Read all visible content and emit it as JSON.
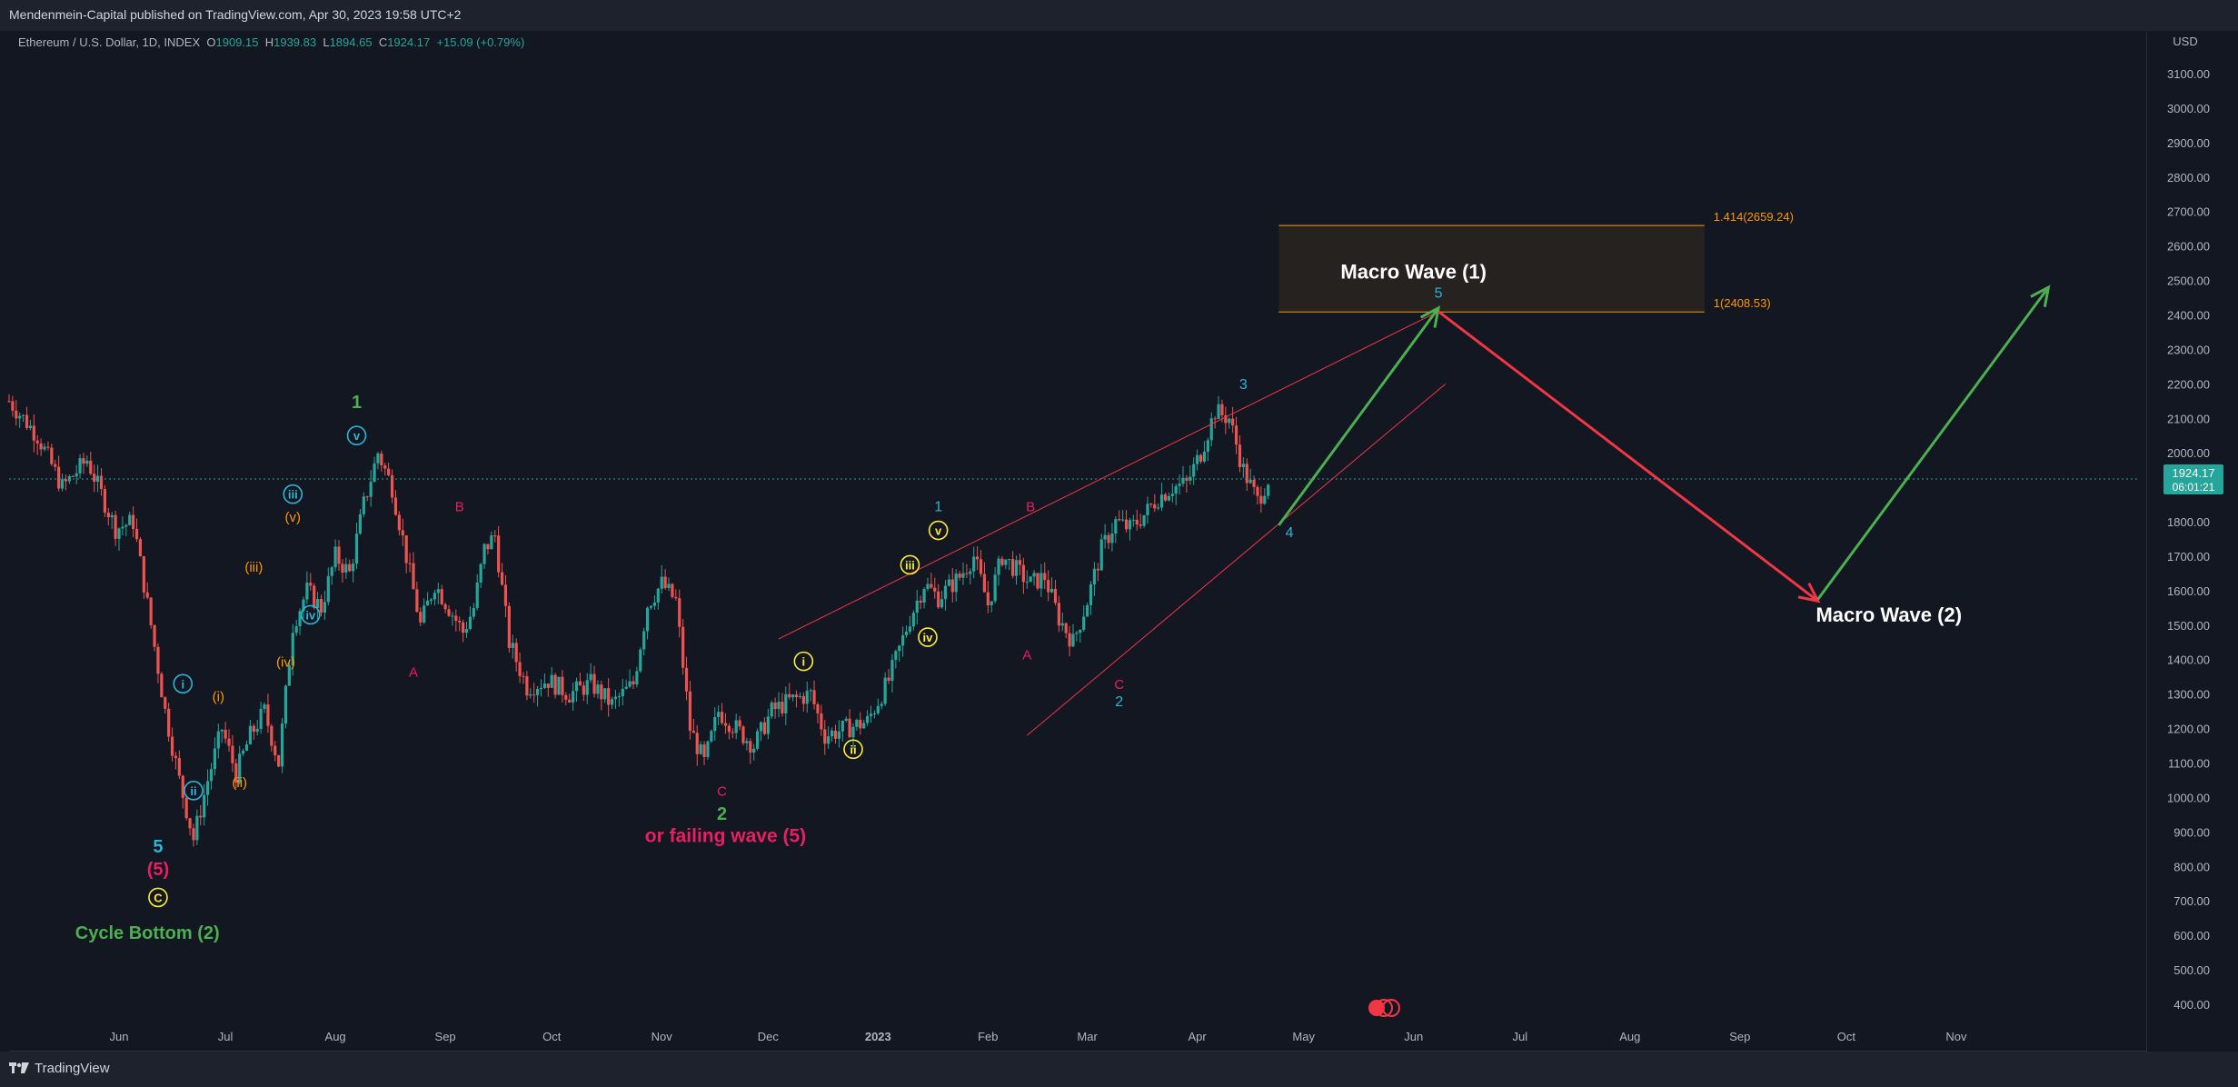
{
  "header": {
    "published_line": "Mendenmein-Capital published on TradingView.com, Apr 30, 2023 19:58 UTC+2"
  },
  "legend": {
    "symbol": "Ethereum / U.S. Dollar, 1D, INDEX",
    "o_label": "O",
    "o": "1909.15",
    "h_label": "H",
    "h": "1939.83",
    "l_label": "L",
    "l": "1894.65",
    "c_label": "C",
    "c": "1924.17",
    "change": "+15.09 (+0.79%)"
  },
  "price_badge": {
    "price": "1924.17",
    "countdown": "06:01:21"
  },
  "footer": {
    "brand": "TradingView"
  },
  "colors": {
    "background": "#131722",
    "up": "#26a69a",
    "down": "#ef5350",
    "green_arrow": "#4caf50",
    "red_arrow": "#f23645",
    "orange": "#ff9800",
    "cyan": "#2bb5d6",
    "yellow": "#ffeb3b",
    "pink": "#e91e63",
    "fib_box": "#2a2520"
  },
  "chart_data": {
    "type": "candlestick",
    "currency": "USD",
    "ylim": [
      350,
      3240
    ],
    "y_ticks": [
      400,
      500,
      600,
      700,
      800,
      900,
      1000,
      1100,
      1200,
      1300,
      1400,
      1500,
      1600,
      1700,
      1800,
      1900,
      2000,
      2100,
      2200,
      2300,
      2400,
      2500,
      2600,
      2700,
      2800,
      2900,
      3000,
      3100
    ],
    "x_labels": [
      "Jun",
      "Jul",
      "Aug",
      "Sep",
      "Oct",
      "Nov",
      "Dec",
      "2023",
      "Feb",
      "Mar",
      "Apr",
      "May",
      "Jun",
      "Jul",
      "Aug",
      "Sep",
      "Oct",
      "Nov"
    ],
    "x_label_days": [
      31,
      61,
      92,
      123,
      153,
      184,
      214,
      245,
      276,
      304,
      335,
      365,
      396,
      426,
      457,
      488,
      518,
      549
    ],
    "x_range_days": [
      0,
      600
    ],
    "series_ohlc_anchor_points": [
      {
        "day": 0,
        "close": 2150
      },
      {
        "day": 8,
        "close": 2050
      },
      {
        "day": 15,
        "close": 1900
      },
      {
        "day": 22,
        "close": 1980
      },
      {
        "day": 30,
        "close": 1780
      },
      {
        "day": 35,
        "close": 1800
      },
      {
        "day": 40,
        "close": 1500
      },
      {
        "day": 44,
        "close": 1250
      },
      {
        "day": 48,
        "close": 1050
      },
      {
        "day": 52,
        "close": 880
      },
      {
        "day": 56,
        "close": 1050
      },
      {
        "day": 60,
        "close": 1200
      },
      {
        "day": 64,
        "close": 1070
      },
      {
        "day": 68,
        "close": 1180
      },
      {
        "day": 72,
        "close": 1250
      },
      {
        "day": 76,
        "close": 1100
      },
      {
        "day": 80,
        "close": 1500
      },
      {
        "day": 84,
        "close": 1600
      },
      {
        "day": 88,
        "close": 1550
      },
      {
        "day": 92,
        "close": 1700
      },
      {
        "day": 96,
        "close": 1650
      },
      {
        "day": 100,
        "close": 1850
      },
      {
        "day": 104,
        "close": 2000
      },
      {
        "day": 108,
        "close": 1900
      },
      {
        "day": 112,
        "close": 1700
      },
      {
        "day": 116,
        "close": 1500
      },
      {
        "day": 120,
        "close": 1620
      },
      {
        "day": 124,
        "close": 1550
      },
      {
        "day": 128,
        "close": 1480
      },
      {
        "day": 131,
        "close": 1550
      },
      {
        "day": 134,
        "close": 1720
      },
      {
        "day": 137,
        "close": 1760
      },
      {
        "day": 141,
        "close": 1450
      },
      {
        "day": 146,
        "close": 1320
      },
      {
        "day": 152,
        "close": 1340
      },
      {
        "day": 158,
        "close": 1300
      },
      {
        "day": 164,
        "close": 1330
      },
      {
        "day": 170,
        "close": 1270
      },
      {
        "day": 176,
        "close": 1330
      },
      {
        "day": 180,
        "close": 1560
      },
      {
        "day": 184,
        "close": 1620
      },
      {
        "day": 188,
        "close": 1570
      },
      {
        "day": 192,
        "close": 1200
      },
      {
        "day": 196,
        "close": 1100
      },
      {
        "day": 200,
        "close": 1250
      },
      {
        "day": 205,
        "close": 1200
      },
      {
        "day": 210,
        "close": 1150
      },
      {
        "day": 215,
        "close": 1250
      },
      {
        "day": 220,
        "close": 1280
      },
      {
        "day": 226,
        "close": 1300
      },
      {
        "day": 230,
        "close": 1180
      },
      {
        "day": 236,
        "close": 1200
      },
      {
        "day": 242,
        "close": 1220
      },
      {
        "day": 248,
        "close": 1340
      },
      {
        "day": 254,
        "close": 1520
      },
      {
        "day": 258,
        "close": 1620
      },
      {
        "day": 262,
        "close": 1580
      },
      {
        "day": 268,
        "close": 1640
      },
      {
        "day": 272,
        "close": 1700
      },
      {
        "day": 276,
        "close": 1560
      },
      {
        "day": 280,
        "close": 1700
      },
      {
        "day": 284,
        "close": 1660
      },
      {
        "day": 288,
        "close": 1620
      },
      {
        "day": 292,
        "close": 1640
      },
      {
        "day": 296,
        "close": 1520
      },
      {
        "day": 300,
        "close": 1450
      },
      {
        "day": 304,
        "close": 1570
      },
      {
        "day": 308,
        "close": 1720
      },
      {
        "day": 312,
        "close": 1800
      },
      {
        "day": 316,
        "close": 1780
      },
      {
        "day": 320,
        "close": 1820
      },
      {
        "day": 324,
        "close": 1870
      },
      {
        "day": 328,
        "close": 1900
      },
      {
        "day": 332,
        "close": 1910
      },
      {
        "day": 336,
        "close": 2000
      },
      {
        "day": 340,
        "close": 2120
      },
      {
        "day": 344,
        "close": 2100
      },
      {
        "day": 348,
        "close": 1950
      },
      {
        "day": 352,
        "close": 1860
      },
      {
        "day": 355,
        "close": 1924
      }
    ],
    "current_price": 1924.17,
    "fib_levels": [
      {
        "label": "1.414(2659.24)",
        "price": 2659.24
      },
      {
        "label": "1(2408.53)",
        "price": 2408.53
      }
    ],
    "annotations": [
      {
        "text": "Macro Wave (1)",
        "day": 396,
        "price": 2505,
        "color": "#ffffff",
        "size": 22,
        "weight": "bold"
      },
      {
        "text": "Macro Wave (2)",
        "day": 530,
        "price": 1510,
        "color": "#ffffff",
        "size": 22,
        "weight": "bold"
      },
      {
        "text": "Cycle Bottom (2)",
        "day": 39,
        "price": 590,
        "color": "#4caf50",
        "size": 20,
        "weight": "bold"
      },
      {
        "text": "or failing wave (5)",
        "day": 202,
        "price": 870,
        "color": "#e91e63",
        "size": 21,
        "weight": "bold"
      },
      {
        "text": "5",
        "day": 42,
        "price": 840,
        "color": "#2bb5d6",
        "size": 20,
        "weight": "bold"
      },
      {
        "text": "(5)",
        "day": 42,
        "price": 775,
        "color": "#e91e63",
        "size": 20,
        "weight": "bold"
      },
      {
        "text": "1",
        "day": 98,
        "price": 2130,
        "color": "#4caf50",
        "size": 20,
        "weight": "bold"
      },
      {
        "text": "2",
        "day": 201,
        "price": 935,
        "color": "#4caf50",
        "size": 20,
        "weight": "bold"
      },
      {
        "text": "C",
        "day": 201,
        "price": 1005,
        "color": "#e91e63",
        "size": 15,
        "weight": "normal"
      },
      {
        "text": "A",
        "day": 114,
        "price": 1350,
        "color": "#e91e63",
        "size": 15,
        "weight": "normal"
      },
      {
        "text": "B",
        "day": 127,
        "price": 1830,
        "color": "#e91e63",
        "size": 15,
        "weight": "normal"
      },
      {
        "text": "1",
        "day": 262,
        "price": 1830,
        "color": "#2bb5d6",
        "size": 16,
        "weight": "normal"
      },
      {
        "text": "B",
        "day": 288,
        "price": 1830,
        "color": "#e91e63",
        "size": 15,
        "weight": "normal"
      },
      {
        "text": "A",
        "day": 287,
        "price": 1400,
        "color": "#e91e63",
        "size": 15,
        "weight": "normal"
      },
      {
        "text": "C",
        "day": 313,
        "price": 1315,
        "color": "#e91e63",
        "size": 15,
        "weight": "normal"
      },
      {
        "text": "2",
        "day": 313,
        "price": 1265,
        "color": "#2bb5d6",
        "size": 16,
        "weight": "normal"
      },
      {
        "text": "3",
        "day": 348,
        "price": 2185,
        "color": "#2bb5d6",
        "size": 16,
        "weight": "normal"
      },
      {
        "text": "4",
        "day": 361,
        "price": 1755,
        "color": "#2bb5d6",
        "size": 16,
        "weight": "normal"
      },
      {
        "text": "5",
        "day": 403,
        "price": 2450,
        "color": "#2bb5d6",
        "size": 16,
        "weight": "normal"
      },
      {
        "text": "(iii)",
        "day": 69,
        "price": 1655,
        "color": "#ff9800",
        "size": 15,
        "weight": "normal"
      },
      {
        "text": "(v)",
        "day": 80,
        "price": 1800,
        "color": "#ff9800",
        "size": 15,
        "weight": "normal"
      },
      {
        "text": "(iv)",
        "day": 78,
        "price": 1380,
        "color": "#ff9800",
        "size": 15,
        "weight": "normal"
      },
      {
        "text": "(i)",
        "day": 59,
        "price": 1280,
        "color": "#ff9800",
        "size": 15,
        "weight": "normal"
      },
      {
        "text": "(ii)",
        "day": 65,
        "price": 1030,
        "color": "#ff9800",
        "size": 15,
        "weight": "normal"
      }
    ],
    "circle_labels": [
      {
        "text": "C",
        "day": 42,
        "price": 710,
        "color": "#ffeb3b"
      },
      {
        "text": "v",
        "day": 98,
        "price": 2050,
        "color": "#2bb5d6"
      },
      {
        "text": "iii",
        "day": 80,
        "price": 1880,
        "color": "#2bb5d6"
      },
      {
        "text": "iv",
        "day": 85,
        "price": 1530,
        "color": "#2bb5d6"
      },
      {
        "text": "i",
        "day": 49,
        "price": 1330,
        "color": "#2bb5d6"
      },
      {
        "text": "ii",
        "day": 52,
        "price": 1020,
        "color": "#2bb5d6"
      },
      {
        "text": "i",
        "day": 224,
        "price": 1395,
        "color": "#ffeb3b"
      },
      {
        "text": "ii",
        "day": 238,
        "price": 1140,
        "color": "#ffeb3b"
      },
      {
        "text": "iii",
        "day": 254,
        "price": 1675,
        "color": "#ffeb3b"
      },
      {
        "text": "iv",
        "day": 259,
        "price": 1465,
        "color": "#ffeb3b"
      },
      {
        "text": "v",
        "day": 262,
        "price": 1775,
        "color": "#ffeb3b"
      }
    ],
    "lines": [
      {
        "from": {
          "day": 217,
          "price": 1460
        },
        "to": {
          "day": 403,
          "price": 2410
        },
        "color": "#f23645",
        "width": 1
      },
      {
        "from": {
          "day": 287,
          "price": 1180
        },
        "to": {
          "day": 405,
          "price": 2200
        },
        "color": "#f23645",
        "width": 1
      }
    ],
    "arrows": [
      {
        "from": {
          "day": 358,
          "price": 1790
        },
        "to": {
          "day": 403,
          "price": 2420
        },
        "color": "#4caf50"
      },
      {
        "from": {
          "day": 403,
          "price": 2410
        },
        "to": {
          "day": 510,
          "price": 1570
        },
        "color": "#f23645"
      },
      {
        "from": {
          "day": 510,
          "price": 1575
        },
        "to": {
          "day": 575,
          "price": 2480
        },
        "color": "#4caf50"
      }
    ],
    "fib_box": {
      "day_start": 358,
      "day_end": 478,
      "price_top": 2659.24,
      "price_bottom": 2408.53
    }
  }
}
